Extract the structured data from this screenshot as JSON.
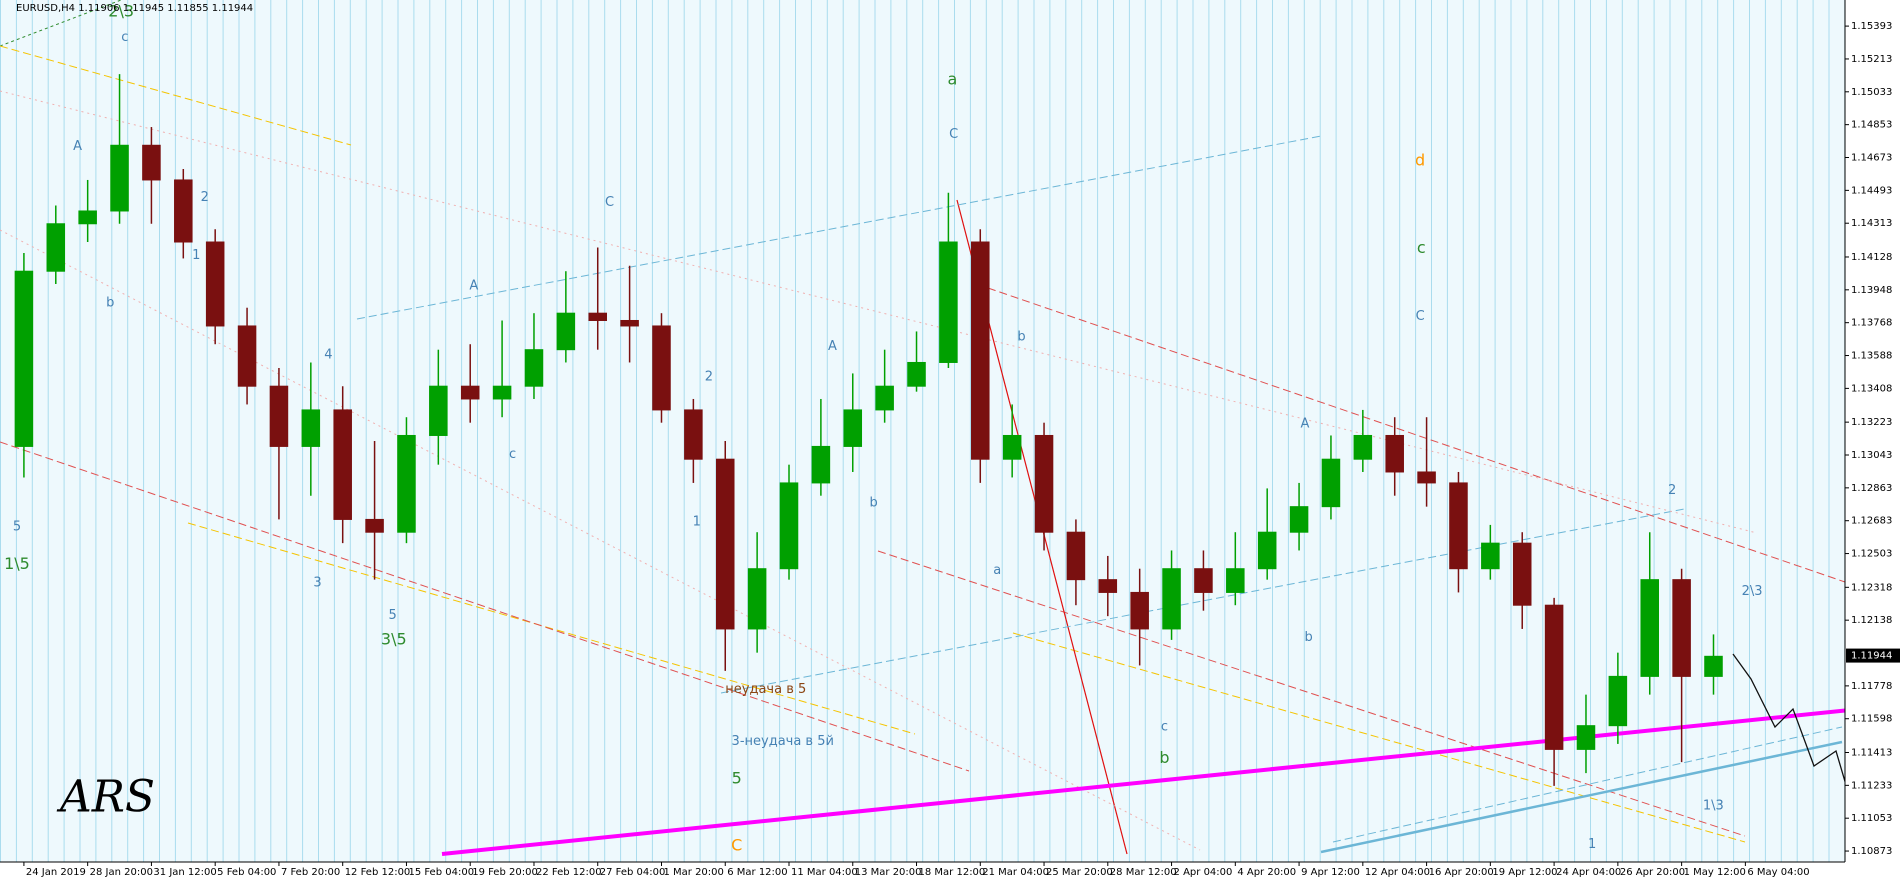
{
  "chart_data": {
    "type": "candlestick",
    "title": "EURUSD,H4  1.11906 1.11945 1.11855 1.11944",
    "current_price": 1.11944,
    "signature": "ARS",
    "up_color": "#00a000",
    "down_color": "#7a1010",
    "xlim": [
      -6,
      457
    ],
    "ylim": [
      1.10813,
      1.15536
    ],
    "xticks": [
      {
        "value": 0,
        "label": "24 Jan 2019"
      },
      {
        "value": 16,
        "label": "28 Jan 20:00"
      },
      {
        "value": 32,
        "label": "31 Jan 12:00"
      },
      {
        "value": 48,
        "label": "5 Feb 04:00"
      },
      {
        "value": 64,
        "label": "7 Feb 20:00"
      },
      {
        "value": 80,
        "label": "12 Feb 12:00"
      },
      {
        "value": 96,
        "label": "15 Feb 04:00"
      },
      {
        "value": 112,
        "label": "19 Feb 20:00"
      },
      {
        "value": 128,
        "label": "22 Feb 12:00"
      },
      {
        "value": 144,
        "label": "27 Feb 04:00"
      },
      {
        "value": 160,
        "label": "1 Mar 20:00"
      },
      {
        "value": 176,
        "label": "6 Mar 12:00"
      },
      {
        "value": 192,
        "label": "11 Mar 04:00"
      },
      {
        "value": 208,
        "label": "13 Mar 20:00"
      },
      {
        "value": 224,
        "label": "18 Mar 12:00"
      },
      {
        "value": 240,
        "label": "21 Mar 04:00"
      },
      {
        "value": 256,
        "label": "25 Mar 20:00"
      },
      {
        "value": 272,
        "label": "28 Mar 12:00"
      },
      {
        "value": 288,
        "label": "2 Apr 04:00"
      },
      {
        "value": 304,
        "label": "4 Apr 20:00"
      },
      {
        "value": 320,
        "label": "9 Apr 12:00"
      },
      {
        "value": 336,
        "label": "12 Apr 04:00"
      },
      {
        "value": 352,
        "label": "16 Apr 20:00"
      },
      {
        "value": 368,
        "label": "19 Apr 12:00"
      },
      {
        "value": 384,
        "label": "24 Apr 04:00"
      },
      {
        "value": 400,
        "label": "26 Apr 20:00"
      },
      {
        "value": 416,
        "label": "1 May 12:00"
      },
      {
        "value": 432,
        "label": "6 May 04:00"
      }
    ],
    "yticks": [
      1.15393,
      1.15213,
      1.15033,
      1.14853,
      1.14673,
      1.14493,
      1.14313,
      1.14128,
      1.13948,
      1.13768,
      1.13588,
      1.13408,
      1.13223,
      1.13043,
      1.12863,
      1.12683,
      1.12503,
      1.12318,
      1.12138,
      1.11778,
      1.11598,
      1.11413,
      1.11233,
      1.11053,
      1.10873
    ],
    "candles": {
      "x": [
        0,
        8,
        16,
        24,
        32,
        40,
        48,
        56,
        64,
        72,
        80,
        88,
        96,
        104,
        112,
        120,
        128,
        136,
        144,
        152,
        160,
        168,
        176,
        184,
        192,
        200,
        208,
        216,
        224,
        232,
        240,
        248,
        256,
        264,
        272,
        280,
        288,
        296,
        304,
        312,
        320,
        328,
        336,
        344,
        352,
        360,
        368,
        376,
        384,
        392,
        400,
        408,
        416,
        424
      ],
      "open": [
        1.1309,
        1.1405,
        1.1431,
        1.1438,
        1.1474,
        1.1455,
        1.1421,
        1.1375,
        1.1342,
        1.1309,
        1.1329,
        1.1269,
        1.1262,
        1.1315,
        1.1342,
        1.1335,
        1.1342,
        1.1362,
        1.1382,
        1.1378,
        1.1375,
        1.1329,
        1.1302,
        1.1209,
        1.1242,
        1.1289,
        1.1309,
        1.1329,
        1.1342,
        1.1355,
        1.1421,
        1.1302,
        1.1315,
        1.1262,
        1.1236,
        1.1229,
        1.1209,
        1.1242,
        1.1229,
        1.1242,
        1.1262,
        1.1276,
        1.1302,
        1.1315,
        1.1295,
        1.1289,
        1.1242,
        1.1256,
        1.1222,
        1.1143,
        1.1156,
        1.1183,
        1.1236,
        1.1183
      ],
      "high": [
        1.1415,
        1.1441,
        1.1455,
        1.1513,
        1.1484,
        1.1461,
        1.1428,
        1.1385,
        1.1352,
        1.1355,
        1.1342,
        1.1312,
        1.1325,
        1.1362,
        1.1365,
        1.1378,
        1.1382,
        1.1405,
        1.1418,
        1.1408,
        1.1382,
        1.1335,
        1.1312,
        1.1262,
        1.1299,
        1.1335,
        1.1349,
        1.1362,
        1.1372,
        1.1448,
        1.1428,
        1.1332,
        1.1322,
        1.1269,
        1.1249,
        1.1242,
        1.1252,
        1.1252,
        1.1262,
        1.1286,
        1.1289,
        1.1315,
        1.1329,
        1.1325,
        1.1325,
        1.1295,
        1.1266,
        1.1262,
        1.1226,
        1.1173,
        1.1196,
        1.1262,
        1.1242,
        1.1206
      ],
      "low": [
        1.1292,
        1.1398,
        1.1421,
        1.1431,
        1.1431,
        1.1412,
        1.1365,
        1.1332,
        1.1269,
        1.1282,
        1.1256,
        1.1236,
        1.1256,
        1.1299,
        1.1322,
        1.1325,
        1.1335,
        1.1355,
        1.1362,
        1.1355,
        1.1322,
        1.1289,
        1.1186,
        1.1196,
        1.1236,
        1.1282,
        1.1295,
        1.1322,
        1.1339,
        1.1352,
        1.1289,
        1.1292,
        1.1252,
        1.1222,
        1.1216,
        1.1189,
        1.1203,
        1.1219,
        1.1222,
        1.1236,
        1.1252,
        1.1269,
        1.1295,
        1.1282,
        1.1276,
        1.1229,
        1.1236,
        1.1209,
        1.1123,
        1.113,
        1.1146,
        1.1173,
        1.1136,
        1.1173
      ],
      "close": [
        1.1405,
        1.1431,
        1.1438,
        1.1474,
        1.1455,
        1.1421,
        1.1375,
        1.1342,
        1.1309,
        1.1329,
        1.1269,
        1.1262,
        1.1315,
        1.1342,
        1.1335,
        1.1342,
        1.1362,
        1.1382,
        1.1378,
        1.1375,
        1.1329,
        1.1302,
        1.1209,
        1.1242,
        1.1289,
        1.1309,
        1.1329,
        1.1342,
        1.1355,
        1.1421,
        1.1302,
        1.1315,
        1.1262,
        1.1236,
        1.1229,
        1.1209,
        1.1242,
        1.1229,
        1.1242,
        1.1262,
        1.1276,
        1.1302,
        1.1315,
        1.1295,
        1.1289,
        1.1242,
        1.1256,
        1.1222,
        1.1143,
        1.1156,
        1.1183,
        1.1236,
        1.1183,
        1.1194
      ]
    },
    "annotations": [
      {
        "text": "2\\3",
        "color": "#2e8b2e"
      },
      {
        "text": "1\\5",
        "color": "#2e8b2e"
      },
      {
        "text": "3\\5",
        "color": "#2e8b2e"
      },
      {
        "text": "a",
        "color": "#2e8b2e"
      },
      {
        "text": "c",
        "color": "#2e8b2e"
      },
      {
        "text": "b",
        "color": "#2e8b2e"
      },
      {
        "text": "5",
        "color": "#2e8b2e"
      },
      {
        "text": "C",
        "color": "#4682b4"
      },
      {
        "text": "C",
        "color": "#4682b4"
      },
      {
        "text": "A",
        "color": "#4682b4"
      },
      {
        "text": "A",
        "color": "#4682b4"
      },
      {
        "text": "A",
        "color": "#4682b4"
      },
      {
        "text": "A",
        "color": "#4682b4"
      },
      {
        "text": "C",
        "color": "#4682b4"
      },
      {
        "text": "2",
        "color": "#4682b4"
      },
      {
        "text": "4",
        "color": "#4682b4"
      },
      {
        "text": "2",
        "color": "#4682b4"
      },
      {
        "text": "1",
        "color": "#4682b4"
      },
      {
        "text": "3",
        "color": "#4682b4"
      },
      {
        "text": "5",
        "color": "#4682b4"
      },
      {
        "text": "5",
        "color": "#4682b4"
      },
      {
        "text": "2",
        "color": "#4682b4"
      },
      {
        "text": "1\\3",
        "color": "#4682b4"
      },
      {
        "text": "2\\3",
        "color": "#4682b4"
      },
      {
        "text": "3-неудача в 5й",
        "color": "#4682b4"
      },
      {
        "text": "d",
        "color": "#ff9900"
      },
      {
        "text": "C",
        "color": "#ff9900"
      },
      {
        "text": "неудача в 5",
        "color": "#8b4513"
      },
      {
        "text": "1",
        "color": "#4682b4"
      },
      {
        "text": "b",
        "color": "#4682b4"
      },
      {
        "text": "c",
        "color": "#4682b4"
      },
      {
        "text": "a",
        "color": "#4682b4"
      },
      {
        "text": "b",
        "color": "#4682b4"
      },
      {
        "text": "c",
        "color": "#4682b4"
      },
      {
        "text": "b",
        "color": "#4682b4"
      },
      {
        "text": "1",
        "color": "#4682b4"
      },
      {
        "text": "b",
        "color": "#4682b4"
      },
      {
        "text": "c",
        "color": "#4682b4"
      }
    ]
  }
}
